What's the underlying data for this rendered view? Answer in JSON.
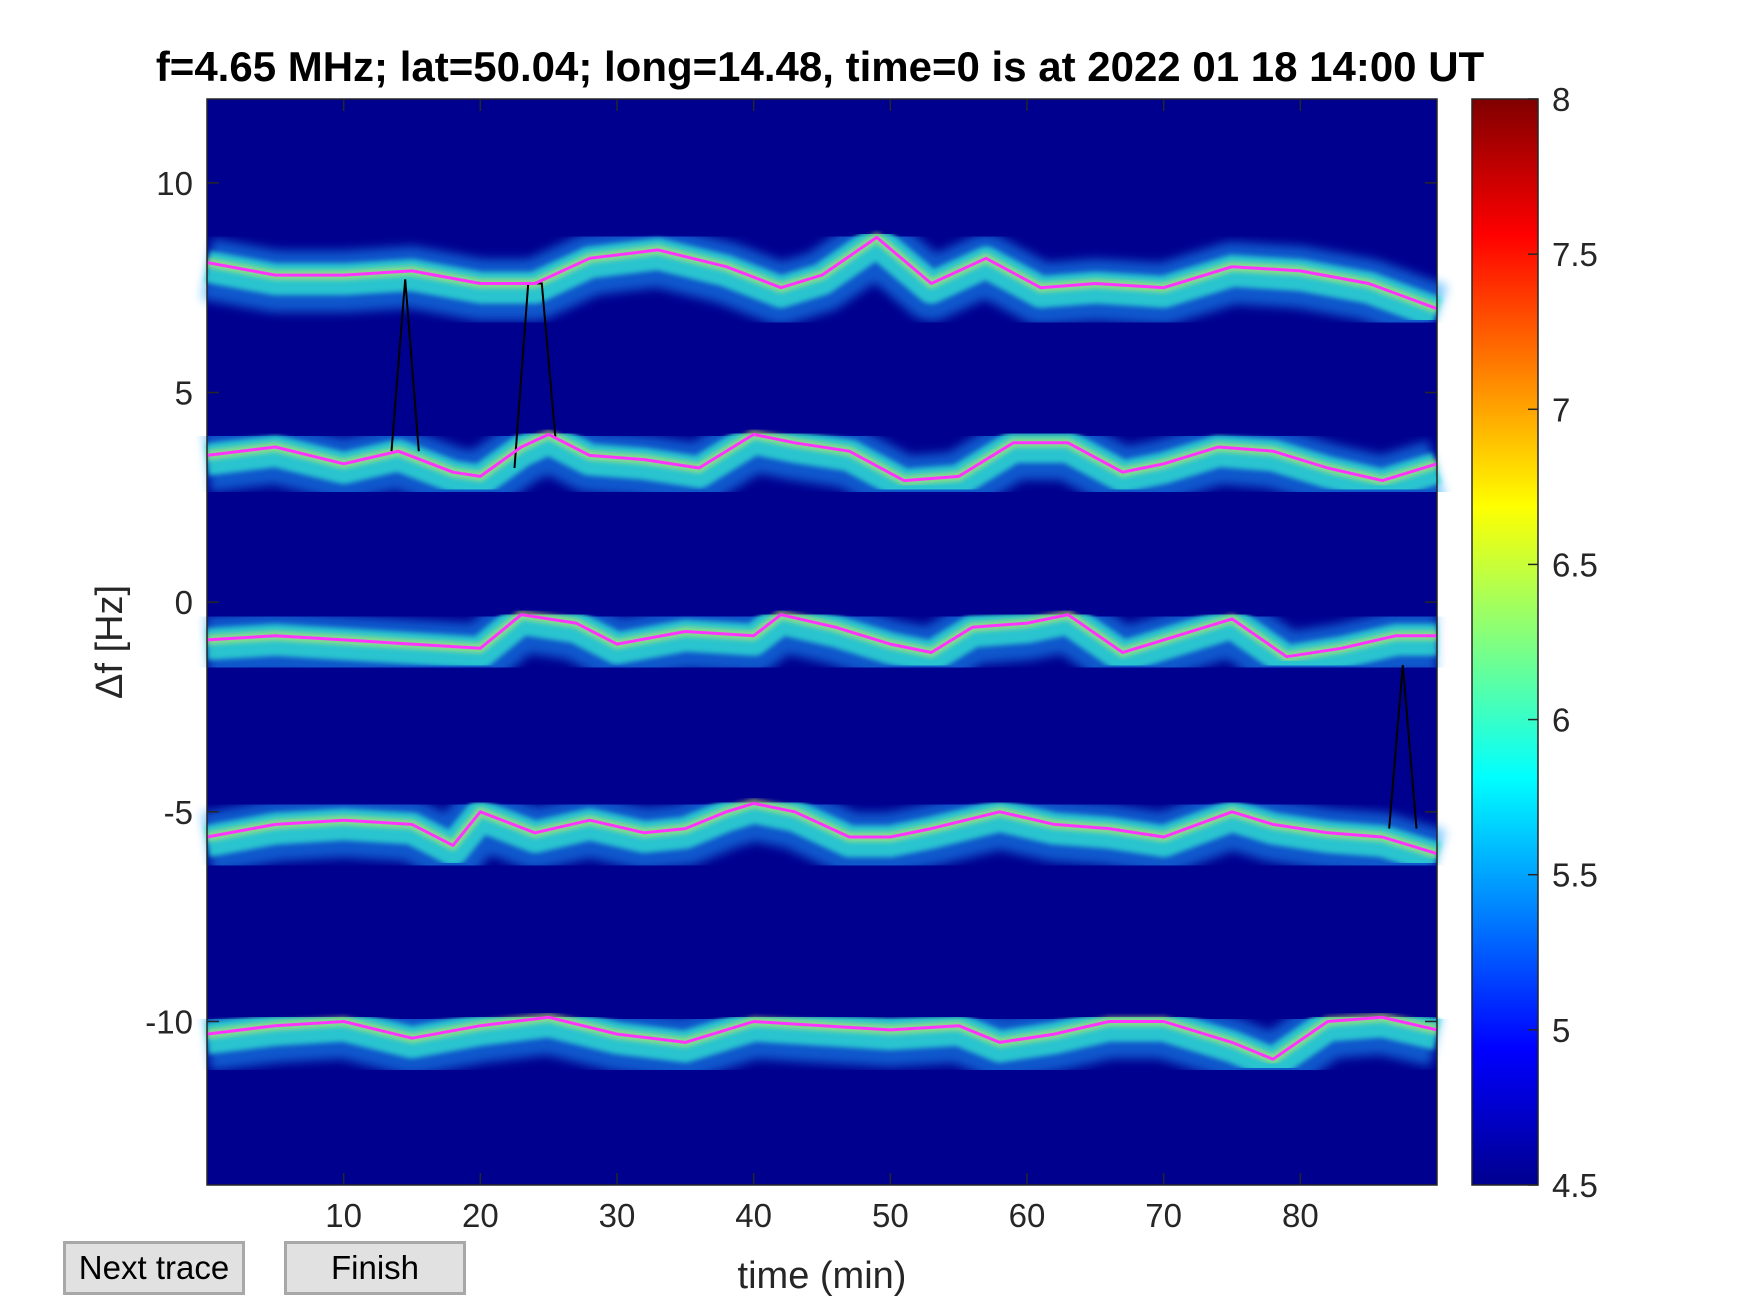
{
  "chart_data": {
    "type": "heatmap",
    "title": "f=4.65 MHz;  lat=50.04; long=14.48, time=0 is at 2022 01 18 14:00 UT",
    "xlabel": "time (min)",
    "ylabel": "Δf [Hz]",
    "xlim": [
      0,
      90
    ],
    "ylim": [
      -13.9,
      12
    ],
    "x_ticks": [
      10,
      20,
      30,
      40,
      50,
      60,
      70,
      80
    ],
    "y_ticks": [
      10,
      5,
      0,
      -5,
      -10
    ],
    "colorbar": {
      "range": [
        4.5,
        8
      ],
      "ticks": [
        8,
        7.5,
        7,
        6.5,
        6,
        5.5,
        5,
        4.5
      ],
      "colormap": "jet"
    },
    "background_color": "#00008f",
    "trace_color": "#ff33ff",
    "spike_color": "#000000",
    "traces": [
      {
        "x": [
          0,
          5,
          10,
          15,
          20,
          24,
          28,
          33,
          38,
          42,
          45,
          49,
          53,
          57,
          61,
          65,
          70,
          75,
          80,
          85,
          90
        ],
        "y": [
          8.1,
          7.8,
          7.8,
          7.9,
          7.6,
          7.6,
          8.2,
          8.4,
          8.0,
          7.5,
          7.8,
          8.7,
          7.6,
          8.2,
          7.5,
          7.6,
          7.5,
          8.0,
          7.9,
          7.6,
          7.0
        ]
      },
      {
        "x": [
          0,
          5,
          10,
          14,
          18,
          20,
          23,
          25,
          28,
          32,
          36,
          40,
          43,
          47,
          51,
          55,
          59,
          63,
          67,
          70,
          74,
          78,
          82,
          86,
          90
        ],
        "y": [
          3.5,
          3.7,
          3.3,
          3.6,
          3.1,
          3.0,
          3.7,
          4.0,
          3.5,
          3.4,
          3.2,
          4.0,
          3.8,
          3.6,
          2.9,
          3.0,
          3.8,
          3.8,
          3.1,
          3.3,
          3.7,
          3.6,
          3.2,
          2.9,
          3.3
        ]
      },
      {
        "x": [
          0,
          5,
          10,
          15,
          20,
          23,
          27,
          30,
          35,
          40,
          42,
          46,
          50,
          53,
          56,
          60,
          63,
          67,
          70,
          75,
          79,
          83,
          87,
          90
        ],
        "y": [
          -0.9,
          -0.8,
          -0.9,
          -1.0,
          -1.1,
          -0.3,
          -0.5,
          -1.0,
          -0.7,
          -0.8,
          -0.3,
          -0.6,
          -1.0,
          -1.2,
          -0.6,
          -0.5,
          -0.3,
          -1.2,
          -0.9,
          -0.4,
          -1.3,
          -1.1,
          -0.8,
          -0.8
        ]
      },
      {
        "x": [
          0,
          5,
          10,
          15,
          18,
          20,
          24,
          28,
          32,
          35,
          38,
          40,
          43,
          47,
          50,
          53,
          58,
          62,
          66,
          70,
          75,
          78,
          82,
          86,
          90
        ],
        "y": [
          -5.6,
          -5.3,
          -5.2,
          -5.3,
          -5.8,
          -5.0,
          -5.5,
          -5.2,
          -5.5,
          -5.4,
          -5.0,
          -4.8,
          -5.0,
          -5.6,
          -5.6,
          -5.4,
          -5.0,
          -5.3,
          -5.4,
          -5.6,
          -5.0,
          -5.3,
          -5.5,
          -5.6,
          -6.0
        ]
      },
      {
        "x": [
          0,
          5,
          10,
          15,
          20,
          25,
          30,
          35,
          40,
          45,
          50,
          55,
          58,
          62,
          66,
          70,
          75,
          78,
          82,
          86,
          90
        ],
        "y": [
          -10.3,
          -10.1,
          -10.0,
          -10.4,
          -10.1,
          -9.9,
          -10.3,
          -10.5,
          -10.0,
          -10.1,
          -10.2,
          -10.1,
          -10.5,
          -10.3,
          -10.0,
          -10.0,
          -10.5,
          -10.9,
          -10.0,
          -9.9,
          -10.2
        ]
      }
    ],
    "spikes": [
      {
        "x": [
          13.5,
          14.5,
          15.5
        ],
        "y": [
          3.6,
          7.7,
          3.6
        ]
      },
      {
        "x": [
          22.5,
          23.5,
          24.5,
          25.5
        ],
        "y": [
          3.2,
          7.6,
          7.6,
          3.9
        ]
      },
      {
        "x": [
          86.5,
          87.5,
          88.5
        ],
        "y": [
          -5.4,
          -1.5,
          -5.4
        ]
      }
    ]
  },
  "buttons": {
    "next_label": "Next trace",
    "finish_label": "Finish"
  }
}
